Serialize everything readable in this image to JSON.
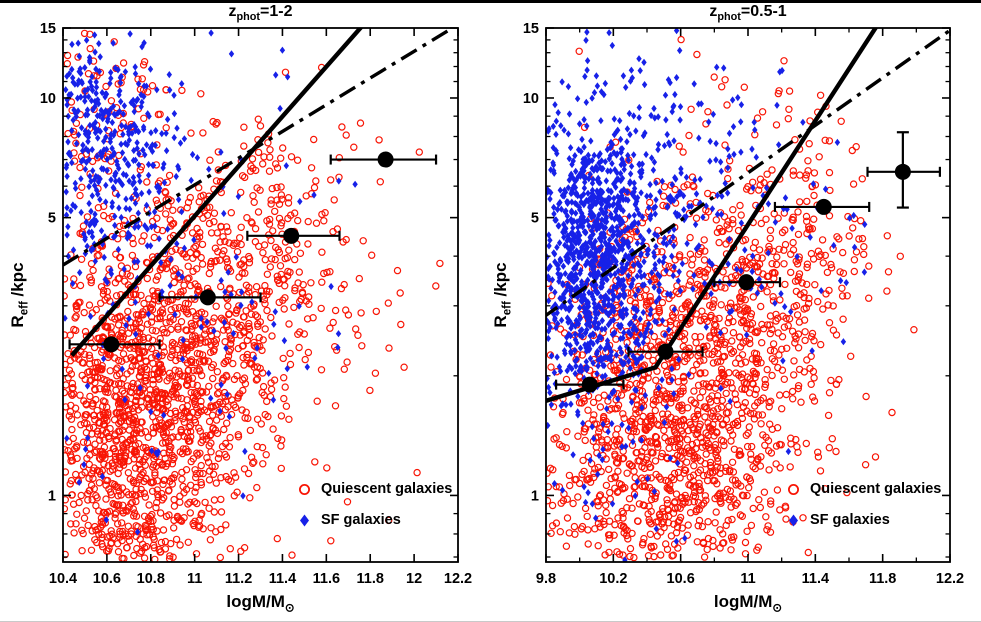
{
  "figure": {
    "background": "#ffffff"
  },
  "chart_data": [
    {
      "type": "scatter",
      "title": {
        "base": "z",
        "sub": "phot",
        "eq": "=1-2"
      },
      "xlabel": {
        "base": "logM/M",
        "sub": "⊙"
      },
      "ylabel": {
        "base": "R",
        "sub": "eff",
        "rest": " /kpc"
      },
      "xlim": [
        10.4,
        12.2
      ],
      "ylim": [
        0.68,
        15
      ],
      "yscale": "log",
      "xticks": [
        10.4,
        10.6,
        10.8,
        11,
        11.2,
        11.4,
        11.6,
        11.8,
        12,
        12.2
      ],
      "xtick_labels": [
        "10.4",
        "10.6",
        "10.8",
        "11",
        "11.2",
        "11.4",
        "11.6",
        "11.8",
        "12",
        "12.2"
      ],
      "yticks": [
        1,
        5,
        10,
        15
      ],
      "ytick_labels": [
        "1",
        "5",
        "10",
        "15"
      ],
      "yminor": [
        0.7,
        0.8,
        0.9,
        2,
        3,
        4,
        6,
        7,
        8,
        9,
        11,
        12,
        13,
        14
      ],
      "xminor": [],
      "series": [
        {
          "name": "Quiescent galaxies",
          "marker": "open-circle",
          "color": "#f81505",
          "clusters": [
            {
              "n": 1250,
              "cx": 10.7,
              "sx": 0.21,
              "cy": 0.17,
              "sy": 0.26
            },
            {
              "n": 520,
              "cx": 11.02,
              "sx": 0.22,
              "cy": 0.36,
              "sy": 0.24
            },
            {
              "n": 210,
              "cx": 11.32,
              "sx": 0.17,
              "cy": 0.58,
              "sy": 0.18
            },
            {
              "n": 60,
              "cx": 11.7,
              "sx": 0.22,
              "cy": 0.55,
              "sy": 0.28
            },
            {
              "n": 90,
              "cx": 10.58,
              "sx": 0.14,
              "cy": 0.92,
              "sy": 0.13
            }
          ]
        },
        {
          "name": "SF galaxies",
          "marker": "diamond",
          "color": "#1721e8",
          "clusters": [
            {
              "n": 300,
              "cx": 10.62,
              "sx": 0.17,
              "cy": 0.82,
              "sy": 0.14
            },
            {
              "n": 120,
              "cx": 10.55,
              "sx": 0.13,
              "cy": 1.0,
              "sy": 0.09
            },
            {
              "n": 110,
              "cx": 10.78,
              "sx": 0.28,
              "cy": 0.5,
              "sy": 0.3
            },
            {
              "n": 25,
              "cx": 11.3,
              "sx": 0.25,
              "cy": 0.6,
              "sy": 0.3
            }
          ]
        }
      ],
      "fit_lines": [
        {
          "style": "dashdot",
          "width": 3.4,
          "points": [
            [
              10.4,
              3.8
            ],
            [
              12.2,
              15.3
            ]
          ]
        },
        {
          "style": "solid",
          "width": 4.4,
          "points": [
            [
              10.44,
              2.25
            ],
            [
              11.8,
              16.0
            ]
          ]
        }
      ],
      "medians": [
        {
          "x": 10.62,
          "y": 2.4,
          "xlo": 10.43,
          "xhi": 10.84
        },
        {
          "x": 11.06,
          "y": 3.15,
          "xlo": 10.84,
          "xhi": 11.3
        },
        {
          "x": 11.44,
          "y": 4.5,
          "xlo": 11.24,
          "xhi": 11.66
        },
        {
          "x": 11.87,
          "y": 7.0,
          "xlo": 11.62,
          "xhi": 12.1
        }
      ]
    },
    {
      "type": "scatter",
      "title": {
        "base": "z",
        "sub": "phot",
        "eq": "=0.5-1"
      },
      "xlabel": {
        "base": "logM/M",
        "sub": "⊙"
      },
      "ylabel": {
        "base": "R",
        "sub": "eff",
        "rest": " /kpc"
      },
      "xlim": [
        9.8,
        12.2
      ],
      "ylim": [
        0.68,
        15
      ],
      "yscale": "log",
      "xticks": [
        9.8,
        10.2,
        10.6,
        11,
        11.4,
        11.8,
        12.2
      ],
      "xtick_labels": [
        "9.8",
        "10.2",
        "10.6",
        "11",
        "11.4",
        "11.8",
        "12.2"
      ],
      "yticks": [
        1,
        5,
        10,
        15
      ],
      "ytick_labels": [
        "1",
        "5",
        "10",
        "15"
      ],
      "yminor": [
        0.7,
        0.8,
        0.9,
        2,
        3,
        4,
        6,
        7,
        8,
        9,
        11,
        12,
        13,
        14
      ],
      "xminor": [
        10.0,
        10.4,
        10.8,
        11.2,
        11.6,
        12.0
      ],
      "series": [
        {
          "name": "Quiescent galaxies",
          "marker": "open-circle",
          "color": "#f81505",
          "clusters": [
            {
              "n": 1050,
              "cx": 10.52,
              "sx": 0.3,
              "cy": 0.13,
              "sy": 0.28
            },
            {
              "n": 470,
              "cx": 10.93,
              "sx": 0.28,
              "cy": 0.38,
              "sy": 0.26
            },
            {
              "n": 160,
              "cx": 11.35,
              "sx": 0.25,
              "cy": 0.6,
              "sy": 0.2
            },
            {
              "n": 90,
              "cx": 10.02,
              "sx": 0.14,
              "cy": 0.02,
              "sy": 0.24
            },
            {
              "n": 90,
              "cx": 10.3,
              "sx": 0.2,
              "cy": 0.55,
              "sy": 0.15
            }
          ]
        },
        {
          "name": "SF galaxies",
          "marker": "diamond",
          "color": "#1721e8",
          "clusters": [
            {
              "n": 780,
              "cx": 10.06,
              "sx": 0.17,
              "cy": 0.6,
              "sy": 0.17
            },
            {
              "n": 290,
              "cx": 10.3,
              "sx": 0.22,
              "cy": 0.72,
              "sy": 0.18
            },
            {
              "n": 150,
              "cx": 10.18,
              "sx": 0.28,
              "cy": 0.36,
              "sy": 0.22
            },
            {
              "n": 90,
              "cx": 10.75,
              "sx": 0.3,
              "cy": 0.78,
              "sy": 0.2
            },
            {
              "n": 40,
              "cx": 11.2,
              "sx": 0.3,
              "cy": 0.6,
              "sy": 0.25
            }
          ]
        }
      ],
      "fit_lines": [
        {
          "style": "dashdot",
          "width": 3.4,
          "points": [
            [
              9.78,
              2.8
            ],
            [
              12.2,
              14.8
            ]
          ]
        },
        {
          "style": "solid",
          "width": 4.4,
          "points": [
            [
              9.78,
              1.72
            ],
            [
              10.45,
              2.1
            ],
            [
              11.8,
              16.0
            ]
          ]
        }
      ],
      "medians": [
        {
          "x": 10.06,
          "y": 1.9,
          "xlo": 9.86,
          "xhi": 10.26
        },
        {
          "x": 10.51,
          "y": 2.3,
          "xlo": 10.29,
          "xhi": 10.73
        },
        {
          "x": 10.99,
          "y": 3.44,
          "xlo": 10.8,
          "xhi": 11.19
        },
        {
          "x": 11.45,
          "y": 5.32,
          "xlo": 11.16,
          "xhi": 11.72
        },
        {
          "x": 11.92,
          "y": 6.52,
          "xlo": 11.71,
          "xhi": 12.14,
          "ylo": 5.3,
          "yhi": 8.2
        }
      ]
    }
  ]
}
